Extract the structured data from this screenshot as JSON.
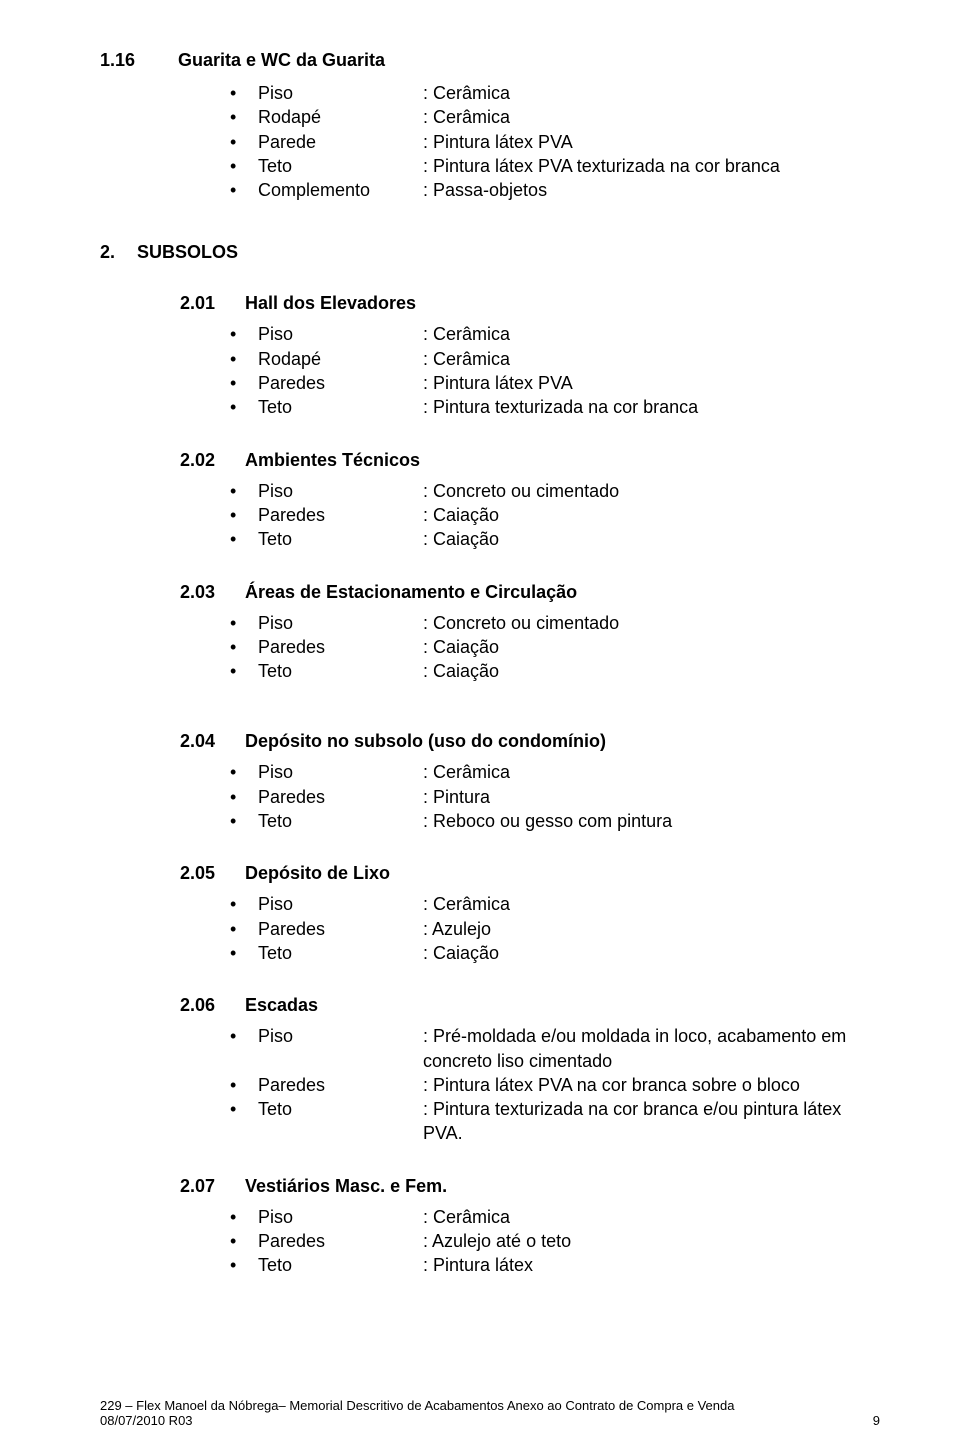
{
  "sections": [
    {
      "num": "1.16",
      "title": "Guarita e WC da Guarita",
      "indentClass": "section-heading",
      "rows": [
        {
          "label": "Piso",
          "value": ": Cerâmica"
        },
        {
          "label": "Rodapé",
          "value": ": Cerâmica"
        },
        {
          "label": "Parede",
          "value": ": Pintura látex PVA"
        },
        {
          "label": "Teto",
          "value": ": Pintura látex PVA texturizada na cor branca"
        },
        {
          "label": "Complemento",
          "value": ": Passa-objetos"
        }
      ]
    }
  ],
  "subsolos": {
    "num": "2.",
    "title": "SUBSOLOS"
  },
  "subsections": [
    {
      "num": "2.01",
      "title": "Hall dos Elevadores",
      "rows": [
        {
          "label": "Piso",
          "value": ": Cerâmica"
        },
        {
          "label": "Rodapé",
          "value": ": Cerâmica"
        },
        {
          "label": "Paredes",
          "value": ": Pintura látex PVA"
        },
        {
          "label": "Teto",
          "value": ": Pintura texturizada na cor branca"
        }
      ]
    },
    {
      "num": "2.02",
      "title": "Ambientes Técnicos",
      "rows": [
        {
          "label": "Piso",
          "value": ": Concreto ou cimentado"
        },
        {
          "label": "Paredes",
          "value": ": Caiação"
        },
        {
          "label": "Teto",
          "value": ": Caiação"
        }
      ]
    },
    {
      "num": "2.03",
      "title": "Áreas de Estacionamento e Circulação",
      "rows": [
        {
          "label": "Piso",
          "value": ": Concreto ou cimentado"
        },
        {
          "label": "Paredes",
          "value": ": Caiação"
        },
        {
          "label": "Teto",
          "value": ": Caiação"
        }
      ]
    },
    {
      "num": "2.04",
      "title": "Depósito no subsolo (uso do condomínio)",
      "gapBefore": true,
      "rows": [
        {
          "label": "Piso",
          "value": ": Cerâmica"
        },
        {
          "label": "Paredes",
          "value": ": Pintura"
        },
        {
          "label": "Teto",
          "value": ": Reboco ou gesso com pintura"
        }
      ]
    },
    {
      "num": "2.05",
      "title": "Depósito de Lixo",
      "rows": [
        {
          "label": "Piso",
          "value": ": Cerâmica"
        },
        {
          "label": "Paredes",
          "value": ": Azulejo"
        },
        {
          "label": "Teto",
          "value": ": Caiação"
        }
      ]
    },
    {
      "num": "2.06",
      "title": "Escadas",
      "rows": [
        {
          "label": "Piso",
          "value": ": Pré-moldada e/ou moldada in loco, acabamento em concreto liso cimentado"
        },
        {
          "label": "Paredes",
          "value": ": Pintura látex PVA na cor branca sobre o bloco"
        },
        {
          "label": "Teto",
          "value": ": Pintura texturizada na cor branca e/ou pintura látex PVA."
        }
      ]
    },
    {
      "num": "2.07",
      "title": "Vestiários Masc. e Fem.",
      "rows": [
        {
          "label": "Piso",
          "value": ": Cerâmica"
        },
        {
          "label": "Paredes",
          "value": ": Azulejo até o teto"
        },
        {
          "label": "Teto",
          "value": ": Pintura látex"
        }
      ]
    }
  ],
  "footer": {
    "line1": "229 – Flex Manoel da Nóbrega– Memorial Descritivo de Acabamentos Anexo ao Contrato de Compra e Venda",
    "line2left": "08/07/2010  R03",
    "line2right": "9"
  },
  "bullet": "•"
}
